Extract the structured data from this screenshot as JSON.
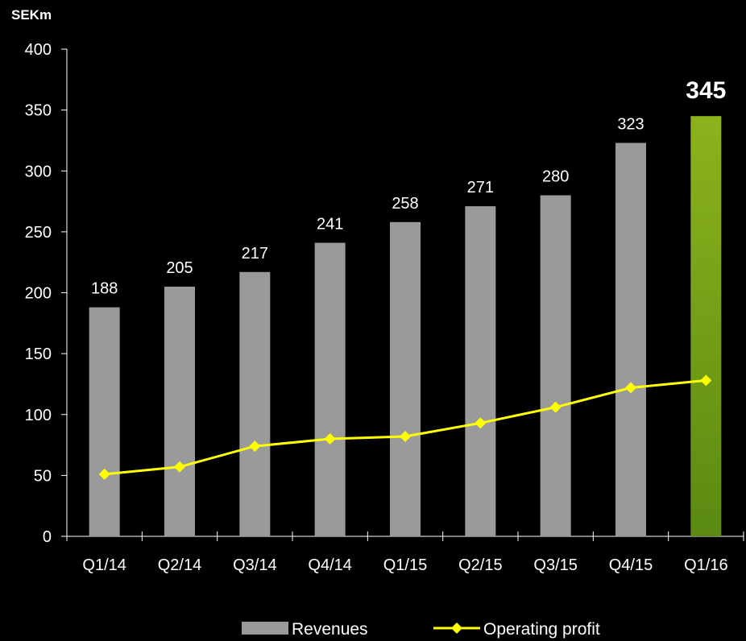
{
  "chart_data": {
    "type": "bar",
    "unit_label": "SEKm",
    "categories": [
      "Q1/14",
      "Q2/14",
      "Q3/14",
      "Q4/14",
      "Q1/15",
      "Q2/15",
      "Q3/15",
      "Q4/15",
      "Q1/16"
    ],
    "series": [
      {
        "name": "Revenues",
        "type": "bar",
        "values": [
          188,
          205,
          217,
          241,
          258,
          271,
          280,
          323,
          345
        ],
        "color": "#9a9a9a",
        "highlight_index": 8,
        "highlight_color": "#6e9a16"
      },
      {
        "name": "Operating profit",
        "type": "line",
        "values": [
          51,
          57,
          74,
          80,
          82,
          93,
          106,
          122,
          128
        ],
        "color": "#ffff00"
      }
    ],
    "data_labels": [
      "188",
      "205",
      "217",
      "241",
      "258",
      "271",
      "280",
      "323",
      "345"
    ],
    "ylim": [
      0,
      400
    ],
    "yticks": [
      0,
      50,
      100,
      150,
      200,
      250,
      300,
      350,
      400
    ],
    "grid": false,
    "legend_position": "bottom"
  }
}
